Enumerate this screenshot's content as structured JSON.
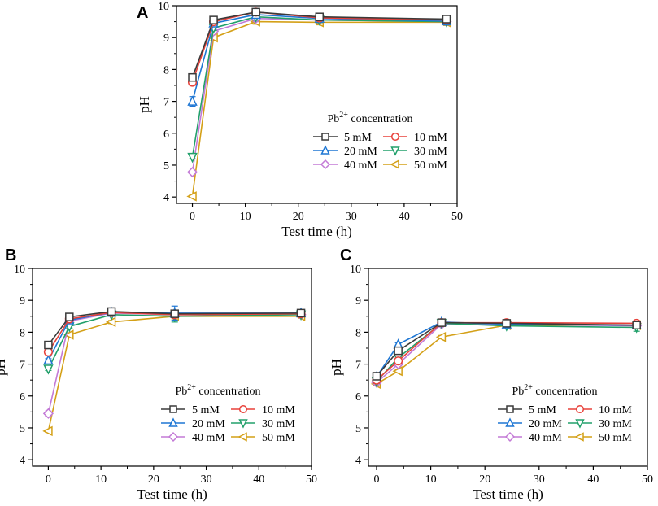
{
  "series_styles": [
    {
      "name": "5 mM",
      "color": "#3a3a3a",
      "marker": "square"
    },
    {
      "name": "10 mM",
      "color": "#e8413a",
      "marker": "circle"
    },
    {
      "name": "20 mM",
      "color": "#1f77d4",
      "marker": "triangle-up"
    },
    {
      "name": "30 mM",
      "color": "#22a06b",
      "marker": "triangle-down"
    },
    {
      "name": "40 mM",
      "color": "#c37ad6",
      "marker": "diamond"
    },
    {
      "name": "50 mM",
      "color": "#d4a017",
      "marker": "triangle-left"
    }
  ],
  "chart_data": [
    {
      "panel": "A",
      "type": "line",
      "title": "",
      "xlabel": "Test time (h)",
      "ylabel": "pH",
      "xlim": [
        -3,
        50
      ],
      "ylim": [
        3.8,
        10
      ],
      "xticks": [
        0,
        10,
        20,
        30,
        40,
        50
      ],
      "yticks": [
        4,
        5,
        6,
        7,
        8,
        9,
        10
      ],
      "legend_title_prefix": "Pb",
      "legend_title_sup": "2+",
      "legend_title_suffix": " concentration",
      "legend_position": "center-right",
      "x": [
        0,
        4,
        12,
        24,
        48
      ],
      "series": [
        {
          "name": "5 mM",
          "values": [
            7.75,
            9.55,
            9.8,
            9.65,
            9.58
          ],
          "err": [
            0.08,
            0.08,
            0.1,
            0.08,
            0.1
          ]
        },
        {
          "name": "10 mM",
          "values": [
            7.6,
            9.5,
            9.8,
            9.62,
            9.55
          ],
          "err": [
            0.1,
            0.08,
            0.1,
            0.08,
            0.1
          ]
        },
        {
          "name": "20 mM",
          "values": [
            7.0,
            9.45,
            9.72,
            9.6,
            9.52
          ],
          "err": [
            0.15,
            0.1,
            0.1,
            0.08,
            0.1
          ]
        },
        {
          "name": "30 mM",
          "values": [
            5.25,
            9.3,
            9.65,
            9.55,
            9.5
          ],
          "err": [
            0.05,
            0.08,
            0.1,
            0.08,
            0.1
          ]
        },
        {
          "name": "40 mM",
          "values": [
            4.78,
            9.2,
            9.6,
            9.55,
            9.5
          ],
          "err": [
            0.05,
            0.08,
            0.1,
            0.08,
            0.1
          ]
        },
        {
          "name": "50 mM",
          "values": [
            4.02,
            9.0,
            9.5,
            9.48,
            9.48
          ],
          "err": [
            0.05,
            0.08,
            0.08,
            0.08,
            0.1
          ]
        }
      ]
    },
    {
      "panel": "B",
      "type": "line",
      "title": "",
      "xlabel": "Test time (h)",
      "ylabel": "pH",
      "xlim": [
        -3,
        50
      ],
      "ylim": [
        3.8,
        10
      ],
      "xticks": [
        0,
        10,
        20,
        30,
        40,
        50
      ],
      "yticks": [
        4,
        5,
        6,
        7,
        8,
        9,
        10
      ],
      "legend_title_prefix": "Pb",
      "legend_title_sup": "2+",
      "legend_title_suffix": " concentration",
      "legend_position": "center-right",
      "x": [
        0,
        4,
        12,
        24,
        48
      ],
      "series": [
        {
          "name": "5 mM",
          "values": [
            7.6,
            8.48,
            8.65,
            8.58,
            8.6
          ],
          "err": [
            0.05,
            0.05,
            0.05,
            0.1,
            0.06
          ]
        },
        {
          "name": "10 mM",
          "values": [
            7.38,
            8.42,
            8.62,
            8.55,
            8.58
          ],
          "err": [
            0.05,
            0.05,
            0.05,
            0.1,
            0.06
          ]
        },
        {
          "name": "20 mM",
          "values": [
            7.12,
            8.38,
            8.62,
            8.6,
            8.6
          ],
          "err": [
            0.05,
            0.05,
            0.05,
            0.22,
            0.06
          ]
        },
        {
          "name": "30 mM",
          "values": [
            6.85,
            8.18,
            8.55,
            8.5,
            8.55
          ],
          "err": [
            0.05,
            0.05,
            0.05,
            0.18,
            0.06
          ]
        },
        {
          "name": "40 mM",
          "values": [
            5.45,
            8.35,
            8.6,
            8.55,
            8.55
          ],
          "err": [
            0.08,
            0.05,
            0.05,
            0.1,
            0.06
          ]
        },
        {
          "name": "50 mM",
          "values": [
            4.9,
            7.92,
            8.32,
            8.5,
            8.5
          ],
          "err": [
            0.04,
            0.05,
            0.05,
            0.08,
            0.06
          ]
        }
      ]
    },
    {
      "panel": "C",
      "type": "line",
      "title": "",
      "xlabel": "Test time (h)",
      "ylabel": "pH",
      "xlim": [
        -1.5,
        50
      ],
      "ylim": [
        3.8,
        10
      ],
      "xticks": [
        0,
        10,
        20,
        30,
        40,
        50
      ],
      "yticks": [
        4,
        5,
        6,
        7,
        8,
        9,
        10
      ],
      "legend_title_prefix": "Pb",
      "legend_title_sup": "2+",
      "legend_title_suffix": " concentration",
      "legend_position": "center-right",
      "x": [
        0,
        4,
        12,
        24,
        48
      ],
      "series": [
        {
          "name": "5 mM",
          "values": [
            6.62,
            7.42,
            8.3,
            8.28,
            8.22
          ],
          "err": [
            0.05,
            0.05,
            0.05,
            0.05,
            0.08
          ]
        },
        {
          "name": "10 mM",
          "values": [
            6.5,
            7.1,
            8.3,
            8.3,
            8.28
          ],
          "err": [
            0.05,
            0.05,
            0.05,
            0.05,
            0.08
          ]
        },
        {
          "name": "20 mM",
          "values": [
            6.6,
            7.62,
            8.32,
            8.25,
            8.22
          ],
          "err": [
            0.05,
            0.05,
            0.05,
            0.05,
            0.08
          ]
        },
        {
          "name": "30 mM",
          "values": [
            6.45,
            7.2,
            8.28,
            8.2,
            8.15
          ],
          "err": [
            0.05,
            0.05,
            0.05,
            0.05,
            0.12
          ]
        },
        {
          "name": "40 mM",
          "values": [
            6.42,
            7.0,
            8.25,
            8.25,
            8.2
          ],
          "err": [
            0.05,
            0.05,
            0.05,
            0.05,
            0.08
          ]
        },
        {
          "name": "50 mM",
          "values": [
            6.38,
            6.78,
            7.85,
            8.22,
            8.22
          ],
          "err": [
            0.05,
            0.05,
            0.05,
            0.05,
            0.08
          ]
        }
      ]
    }
  ]
}
